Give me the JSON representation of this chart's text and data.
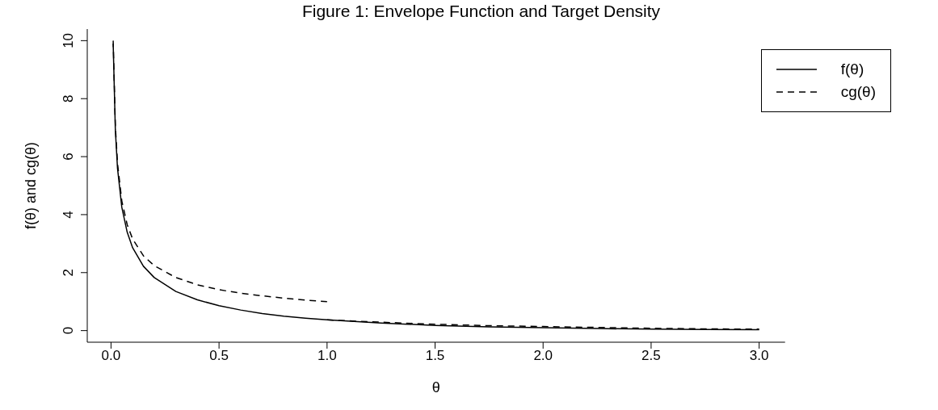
{
  "chart_data": {
    "type": "line",
    "title": "Figure 1: Envelope Function and Target Density",
    "xlabel": "θ",
    "ylabel": "f(θ) and cg(θ)",
    "xlim": [
      -0.11,
      3.12
    ],
    "ylim": [
      -0.4,
      10.4
    ],
    "xticks": [
      {
        "value": 0,
        "label": "0.0"
      },
      {
        "value": 0.5,
        "label": "0.5"
      },
      {
        "value": 1,
        "label": "1.0"
      },
      {
        "value": 1.5,
        "label": "1.5"
      },
      {
        "value": 2,
        "label": "2.0"
      },
      {
        "value": 2.5,
        "label": "2.5"
      },
      {
        "value": 3,
        "label": "3.0"
      }
    ],
    "yticks": [
      0,
      2,
      4,
      6,
      8,
      10
    ],
    "grid": false,
    "legend": "top right",
    "marker": "none",
    "series": [
      {
        "name": "f(θ)",
        "color": "#000000",
        "line_style": "solid",
        "x": [
          0.01,
          0.02,
          0.03,
          0.05,
          0.075,
          0.1,
          0.15,
          0.2,
          0.3,
          0.4,
          0.5,
          0.6,
          0.7,
          0.8,
          0.9,
          1.0,
          1.25,
          1.5,
          1.75,
          2,
          2.25,
          2.5,
          2.75,
          3
        ],
        "values": [
          9.9,
          6.93,
          5.6,
          4.25,
          3.39,
          2.86,
          2.22,
          1.83,
          1.35,
          1.06,
          0.86,
          0.71,
          0.59,
          0.5,
          0.43,
          0.37,
          0.26,
          0.18,
          0.13,
          0.1,
          0.07,
          0.05,
          0.04,
          0.03
        ]
      },
      {
        "name": "cg(θ)",
        "color": "#000000",
        "line_style": "dashed",
        "x": [
          0.01,
          0.02,
          0.03,
          0.05,
          0.075,
          0.1,
          0.15,
          0.2,
          0.3,
          0.4,
          0.5,
          0.6,
          0.7,
          0.8,
          0.9,
          1.0
        ],
        "values": [
          10,
          7.07,
          5.77,
          4.47,
          3.65,
          3.16,
          2.58,
          2.24,
          1.83,
          1.58,
          1.41,
          1.29,
          1.2,
          1.12,
          1.05,
          1.0
        ]
      },
      {
        "color": "#000000",
        "line_style": "dashed",
        "x": [
          1.0,
          1.25,
          1.5,
          1.75,
          2,
          2.25,
          2.5,
          2.75,
          3
        ],
        "values": [
          0.37,
          0.29,
          0.22,
          0.17,
          0.14,
          0.11,
          0.08,
          0.06,
          0.05
        ]
      }
    ]
  }
}
